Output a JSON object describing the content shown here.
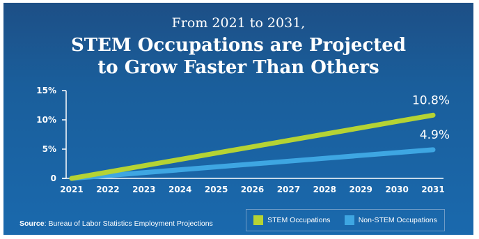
{
  "title": {
    "line1": "From 2021 to 2031,",
    "line2": "STEM Occupations are Projected",
    "line3": "to Grow Faster Than Others"
  },
  "source": {
    "label": "Source",
    "text": ": Bureau of Labor Statistics Employment Projections"
  },
  "colors": {
    "stem": "#b5d334",
    "non_stem": "#3ea6e2",
    "axis": "#ffffff"
  },
  "chart_data": {
    "type": "line",
    "x": [
      "2021",
      "2022",
      "2023",
      "2024",
      "2025",
      "2026",
      "2027",
      "2028",
      "2029",
      "2030",
      "2031"
    ],
    "series": [
      {
        "name": "STEM Occupations",
        "values": [
          0,
          1.08,
          2.16,
          3.24,
          4.32,
          5.4,
          6.48,
          7.56,
          8.64,
          9.72,
          10.8
        ],
        "end_label": "10.8%"
      },
      {
        "name": "Non-STEM Occupations",
        "values": [
          0,
          0.49,
          0.98,
          1.47,
          1.96,
          2.45,
          2.94,
          3.43,
          3.92,
          4.41,
          4.9
        ],
        "end_label": "4.9%"
      }
    ],
    "yticks": [
      "0",
      "5%",
      "10%",
      "15%"
    ],
    "ytick_values": [
      0,
      5,
      10,
      15
    ],
    "ylim": [
      0,
      15
    ],
    "grid": false,
    "legend_position": "bottom-right"
  }
}
